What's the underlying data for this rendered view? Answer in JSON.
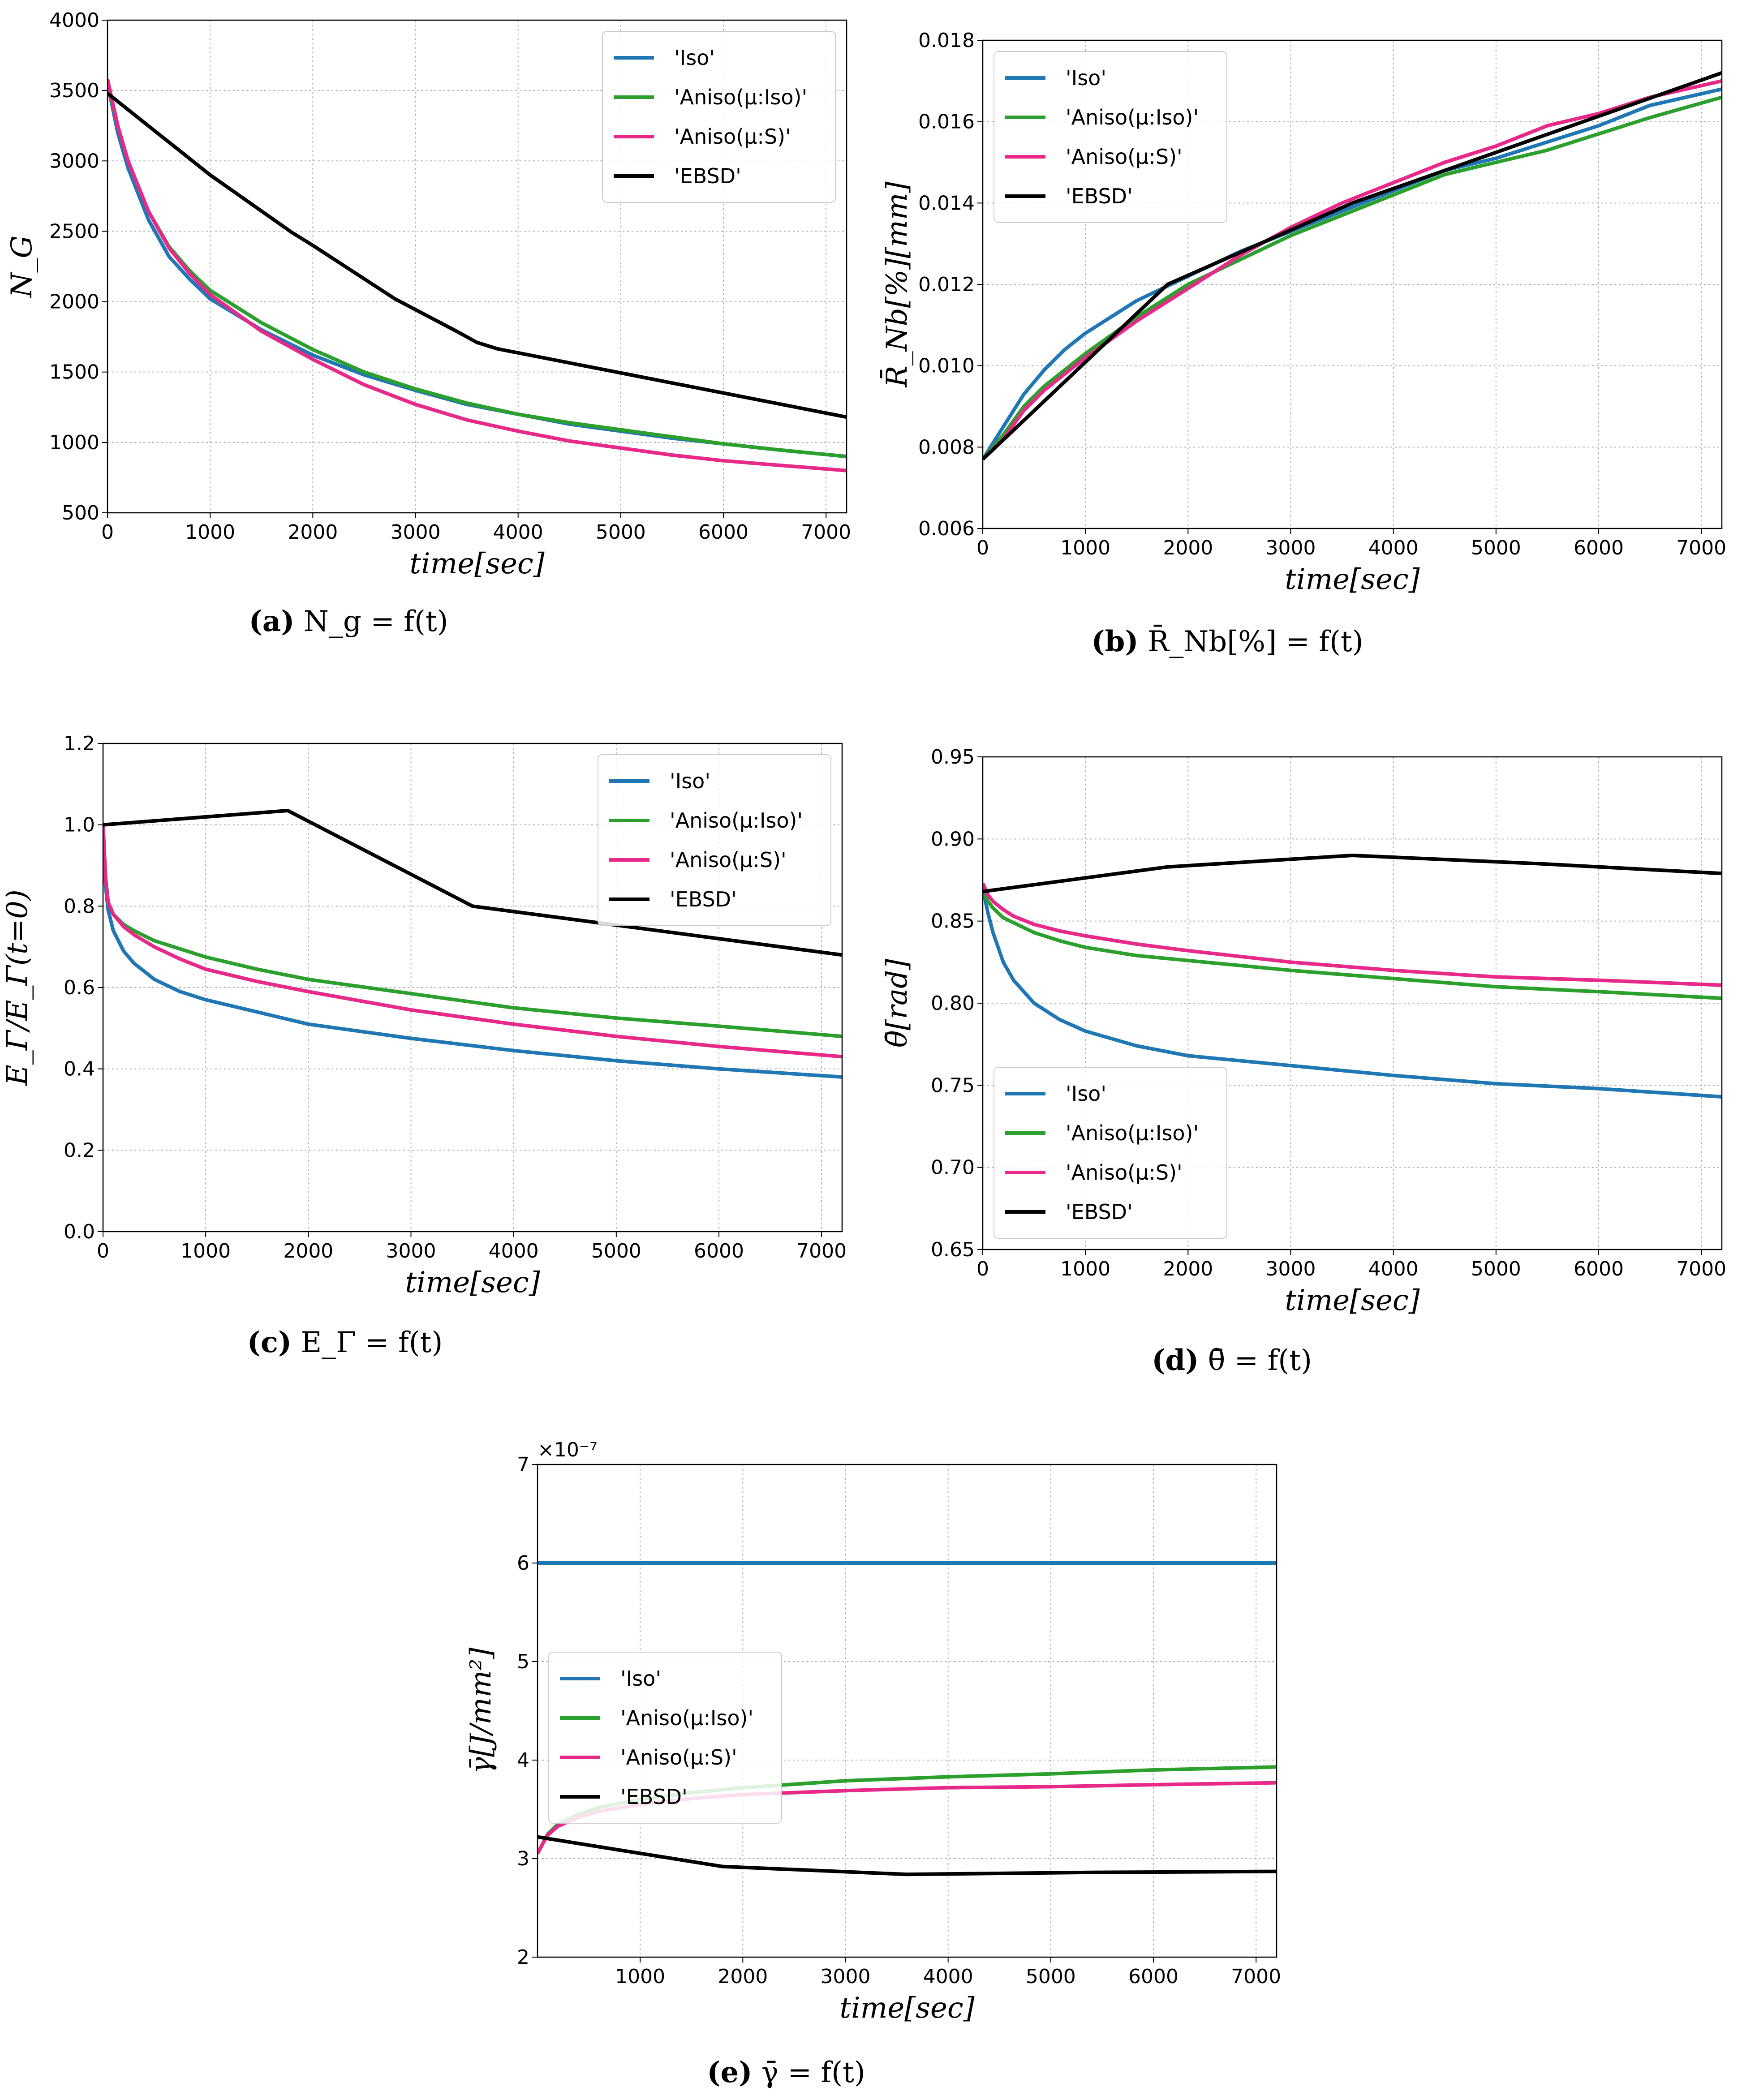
{
  "colors": {
    "iso": "#1f77b4",
    "aniso_iso": "#2ca02c",
    "aniso_s": "#e7298a",
    "ebsd": "#000000"
  },
  "chart_data": [
    {
      "id": "a",
      "type": "line",
      "caption_label": "(a)",
      "caption_formula": "N_g = f(t)",
      "xlabel": "time[sec]",
      "ylabel": "N_G",
      "xlim": [
        0,
        7200
      ],
      "ylim": [
        500,
        4000
      ],
      "xticks": [
        0,
        1000,
        2000,
        3000,
        4000,
        5000,
        6000,
        7000
      ],
      "yticks": [
        500,
        1000,
        1500,
        2000,
        2500,
        3000,
        3500,
        4000
      ],
      "legend_position": "top-right",
      "grid": true,
      "series": [
        {
          "name": "'Iso'",
          "color_key": "iso",
          "x": [
            0,
            100,
            200,
            400,
            600,
            800,
            1000,
            1500,
            2000,
            2500,
            3000,
            3500,
            4000,
            4500,
            5000,
            5500,
            6000,
            6500,
            7200
          ],
          "y": [
            3550,
            3200,
            2950,
            2580,
            2320,
            2160,
            2020,
            1800,
            1620,
            1480,
            1370,
            1270,
            1200,
            1130,
            1080,
            1030,
            990,
            950,
            900
          ]
        },
        {
          "name": "'Aniso(μ:Iso)'",
          "color_key": "aniso_iso",
          "x": [
            0,
            100,
            200,
            400,
            600,
            800,
            1000,
            1500,
            2000,
            2500,
            3000,
            3500,
            4000,
            4500,
            5000,
            5500,
            6000,
            6500,
            7200
          ],
          "y": [
            3550,
            3250,
            3000,
            2640,
            2390,
            2220,
            2080,
            1850,
            1660,
            1500,
            1380,
            1280,
            1200,
            1140,
            1090,
            1040,
            990,
            950,
            900
          ]
        },
        {
          "name": "'Aniso(μ:S)'",
          "color_key": "aniso_s",
          "x": [
            0,
            100,
            200,
            400,
            600,
            800,
            1000,
            1500,
            2000,
            2500,
            3000,
            3500,
            4000,
            4500,
            5000,
            5500,
            6000,
            6500,
            7200
          ],
          "y": [
            3580,
            3250,
            3000,
            2640,
            2380,
            2200,
            2050,
            1790,
            1590,
            1410,
            1270,
            1160,
            1080,
            1010,
            960,
            910,
            870,
            840,
            800
          ]
        },
        {
          "name": "'EBSD'",
          "color_key": "ebsd",
          "x": [
            0,
            1000,
            1800,
            2000,
            2800,
            3400,
            3600,
            3800,
            7200
          ],
          "y": [
            3480,
            2900,
            2490,
            2400,
            2020,
            1790,
            1710,
            1665,
            1180
          ]
        }
      ]
    },
    {
      "id": "b",
      "type": "line",
      "caption_label": "(b)",
      "caption_formula": "R̄_Nb[%] = f(t)",
      "xlabel": "time[sec]",
      "ylabel": "R̄_Nb[%][mm]",
      "xlim": [
        0,
        7200
      ],
      "ylim": [
        0.006,
        0.018
      ],
      "xticks": [
        0,
        1000,
        2000,
        3000,
        4000,
        5000,
        6000,
        7000
      ],
      "yticks": [
        0.006,
        0.008,
        0.01,
        0.012,
        0.014,
        0.016,
        0.018
      ],
      "ytick_labels": [
        "0.006",
        "0.008",
        "0.010",
        "0.012",
        "0.014",
        "0.016",
        "0.018"
      ],
      "legend_position": "top-left",
      "grid": true,
      "series": [
        {
          "name": "'Iso'",
          "color_key": "iso",
          "x": [
            0,
            200,
            400,
            600,
            800,
            1000,
            1500,
            2000,
            2500,
            3000,
            3500,
            4000,
            4500,
            5000,
            5500,
            6000,
            6500,
            7200
          ],
          "y": [
            0.0077,
            0.0085,
            0.0093,
            0.0099,
            0.0104,
            0.0108,
            0.0116,
            0.0122,
            0.0128,
            0.0133,
            0.0138,
            0.0143,
            0.0148,
            0.0151,
            0.0155,
            0.0159,
            0.0164,
            0.0168
          ]
        },
        {
          "name": "'Aniso(μ:Iso)'",
          "color_key": "aniso_iso",
          "x": [
            0,
            200,
            400,
            600,
            800,
            1000,
            1500,
            2000,
            2500,
            3000,
            3500,
            4000,
            4500,
            5000,
            5500,
            6000,
            6500,
            7200
          ],
          "y": [
            0.0077,
            0.0083,
            0.009,
            0.0095,
            0.0099,
            0.0103,
            0.0112,
            0.012,
            0.0126,
            0.0132,
            0.0137,
            0.0142,
            0.0147,
            0.015,
            0.0153,
            0.0157,
            0.0161,
            0.0166
          ]
        },
        {
          "name": "'Aniso(μ:S)'",
          "color_key": "aniso_s",
          "x": [
            0,
            200,
            400,
            600,
            800,
            1000,
            1500,
            2000,
            2500,
            3000,
            3500,
            4000,
            4500,
            5000,
            5500,
            6000,
            6500,
            7200
          ],
          "y": [
            0.0077,
            0.0082,
            0.0089,
            0.0094,
            0.0098,
            0.0102,
            0.0111,
            0.0119,
            0.0127,
            0.0134,
            0.014,
            0.0145,
            0.015,
            0.0154,
            0.0159,
            0.0162,
            0.0166,
            0.017
          ]
        },
        {
          "name": "'EBSD'",
          "color_key": "ebsd",
          "x": [
            0,
            1800,
            3600,
            5400,
            7200
          ],
          "y": [
            0.0077,
            0.012,
            0.014,
            0.0156,
            0.0172
          ]
        }
      ]
    },
    {
      "id": "c",
      "type": "line",
      "caption_label": "(c)",
      "caption_formula": "E_Γ = f(t)",
      "xlabel": "time[sec]",
      "ylabel": "E_Γ/E_Γ(t=0)",
      "xlim": [
        0,
        7200
      ],
      "ylim": [
        0.0,
        1.2
      ],
      "xticks": [
        0,
        1000,
        2000,
        3000,
        4000,
        5000,
        6000,
        7000
      ],
      "yticks": [
        0.0,
        0.2,
        0.4,
        0.6,
        0.8,
        1.0,
        1.2
      ],
      "ytick_labels": [
        "0.0",
        "0.2",
        "0.4",
        "0.6",
        "0.8",
        "1.0",
        "1.2"
      ],
      "legend_position": "top-right",
      "grid": true,
      "series": [
        {
          "name": "'Iso'",
          "color_key": "iso",
          "x": [
            0,
            25,
            50,
            100,
            200,
            300,
            500,
            750,
            1000,
            1500,
            2000,
            3000,
            4000,
            5000,
            6000,
            7200
          ],
          "y": [
            1.0,
            0.85,
            0.79,
            0.74,
            0.69,
            0.66,
            0.62,
            0.59,
            0.57,
            0.54,
            0.51,
            0.475,
            0.445,
            0.42,
            0.4,
            0.38
          ]
        },
        {
          "name": "'Aniso(μ:Iso)'",
          "color_key": "aniso_iso",
          "x": [
            0,
            25,
            50,
            100,
            200,
            300,
            500,
            750,
            1000,
            1500,
            2000,
            3000,
            4000,
            5000,
            6000,
            7200
          ],
          "y": [
            1.0,
            0.87,
            0.81,
            0.78,
            0.755,
            0.74,
            0.715,
            0.695,
            0.675,
            0.645,
            0.62,
            0.585,
            0.55,
            0.525,
            0.505,
            0.48
          ]
        },
        {
          "name": "'Aniso(μ:S)'",
          "color_key": "aniso_s",
          "x": [
            0,
            25,
            50,
            100,
            200,
            300,
            500,
            750,
            1000,
            1500,
            2000,
            3000,
            4000,
            5000,
            6000,
            7200
          ],
          "y": [
            1.0,
            0.87,
            0.81,
            0.78,
            0.75,
            0.73,
            0.7,
            0.67,
            0.645,
            0.615,
            0.59,
            0.545,
            0.51,
            0.48,
            0.455,
            0.43
          ]
        },
        {
          "name": "'EBSD'",
          "color_key": "ebsd",
          "x": [
            0,
            1800,
            3600,
            7200
          ],
          "y": [
            1.0,
            1.035,
            0.8,
            0.68
          ]
        }
      ]
    },
    {
      "id": "d",
      "type": "line",
      "caption_label": "(d)",
      "caption_formula": "θ̄ = f(t)",
      "xlabel": "time[sec]",
      "ylabel": "θ̄[rad]",
      "xlim": [
        0,
        7200
      ],
      "ylim": [
        0.65,
        0.95
      ],
      "xticks": [
        0,
        1000,
        2000,
        3000,
        4000,
        5000,
        6000,
        7000
      ],
      "yticks": [
        0.65,
        0.7,
        0.75,
        0.8,
        0.85,
        0.9,
        0.95
      ],
      "ytick_labels": [
        "0.65",
        "0.70",
        "0.75",
        "0.80",
        "0.85",
        "0.90",
        "0.95"
      ],
      "legend_position": "bottom-left",
      "grid": true,
      "series": [
        {
          "name": "'Iso'",
          "color_key": "iso",
          "x": [
            0,
            50,
            100,
            200,
            300,
            500,
            750,
            1000,
            1500,
            2000,
            3000,
            4000,
            5000,
            6000,
            7200
          ],
          "y": [
            0.87,
            0.855,
            0.843,
            0.825,
            0.814,
            0.8,
            0.79,
            0.783,
            0.774,
            0.768,
            0.762,
            0.756,
            0.751,
            0.748,
            0.743
          ]
        },
        {
          "name": "'Aniso(μ:Iso)'",
          "color_key": "aniso_iso",
          "x": [
            0,
            50,
            100,
            200,
            300,
            500,
            750,
            1000,
            1500,
            2000,
            3000,
            4000,
            5000,
            6000,
            7200
          ],
          "y": [
            0.87,
            0.862,
            0.858,
            0.852,
            0.849,
            0.843,
            0.838,
            0.834,
            0.829,
            0.826,
            0.82,
            0.815,
            0.81,
            0.807,
            0.803
          ]
        },
        {
          "name": "'Aniso(μ:S)'",
          "color_key": "aniso_s",
          "x": [
            0,
            50,
            100,
            200,
            300,
            500,
            750,
            1000,
            1500,
            2000,
            3000,
            4000,
            5000,
            6000,
            7200
          ],
          "y": [
            0.873,
            0.866,
            0.862,
            0.857,
            0.853,
            0.848,
            0.844,
            0.841,
            0.836,
            0.832,
            0.825,
            0.82,
            0.816,
            0.814,
            0.811
          ]
        },
        {
          "name": "'EBSD'",
          "color_key": "ebsd",
          "x": [
            0,
            1800,
            3600,
            5400,
            7200
          ],
          "y": [
            0.868,
            0.883,
            0.89,
            0.885,
            0.879
          ]
        }
      ]
    },
    {
      "id": "e",
      "type": "line",
      "caption_label": "(e)",
      "caption_formula": "γ̄ = f(t)",
      "xlabel": "time[sec]",
      "ylabel": "γ̄[J/mm²]",
      "multiplier": "×10⁻⁷",
      "xlim": [
        0,
        7200
      ],
      "ylim": [
        2,
        7
      ],
      "xticks": [
        1000,
        2000,
        3000,
        4000,
        5000,
        6000,
        7000
      ],
      "yticks": [
        2,
        3,
        4,
        5,
        6,
        7
      ],
      "legend_position": "center-left",
      "grid": true,
      "series": [
        {
          "name": "'Iso'",
          "color_key": "iso",
          "x": [
            0,
            7200
          ],
          "y": [
            6.0,
            6.0
          ]
        },
        {
          "name": "'Aniso(μ:Iso)'",
          "color_key": "aniso_iso",
          "x": [
            0,
            50,
            100,
            200,
            400,
            600,
            1000,
            1500,
            2000,
            3000,
            4000,
            5000,
            6000,
            7200
          ],
          "y": [
            3.05,
            3.15,
            3.25,
            3.35,
            3.45,
            3.52,
            3.6,
            3.67,
            3.72,
            3.79,
            3.83,
            3.86,
            3.9,
            3.93
          ]
        },
        {
          "name": "'Aniso(μ:S)'",
          "color_key": "aniso_s",
          "x": [
            0,
            50,
            100,
            200,
            400,
            600,
            1000,
            1500,
            2000,
            3000,
            4000,
            5000,
            6000,
            7200
          ],
          "y": [
            3.05,
            3.15,
            3.24,
            3.33,
            3.42,
            3.48,
            3.55,
            3.61,
            3.65,
            3.69,
            3.72,
            3.73,
            3.75,
            3.77
          ]
        },
        {
          "name": "'EBSD'",
          "color_key": "ebsd",
          "x": [
            0,
            1800,
            3600,
            5400,
            7200
          ],
          "y": [
            3.22,
            2.92,
            2.84,
            2.86,
            2.87
          ]
        }
      ]
    }
  ]
}
